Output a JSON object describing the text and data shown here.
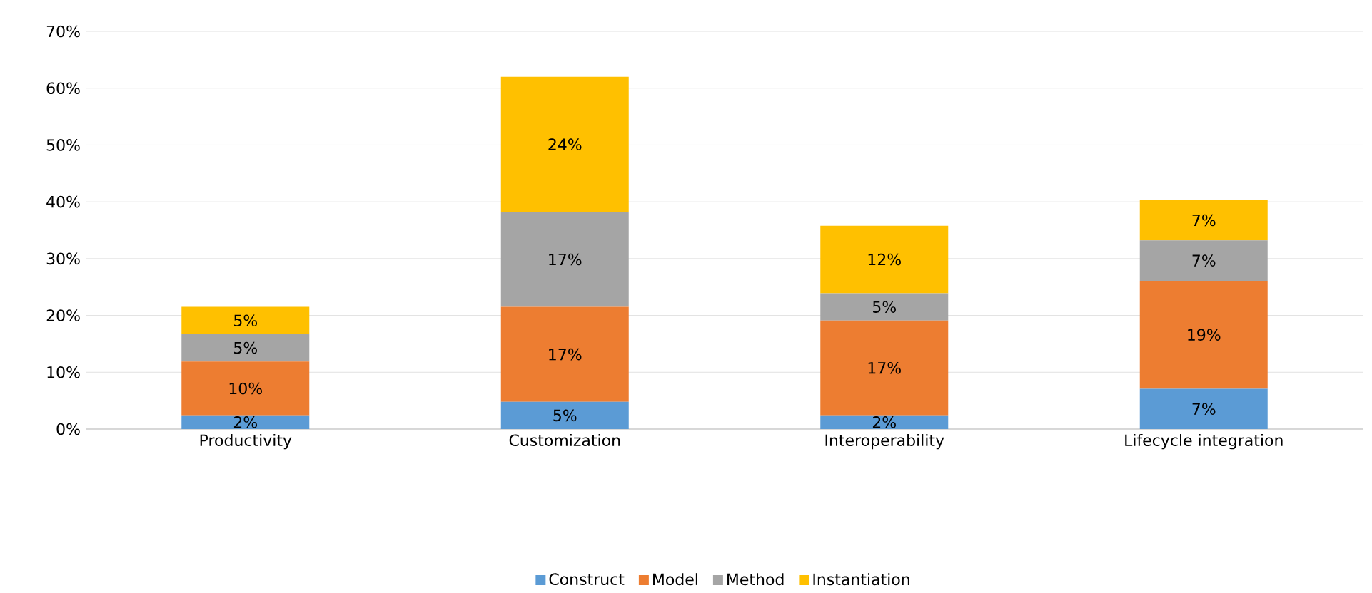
{
  "chart_data": {
    "type": "bar",
    "stacked": true,
    "categories": [
      "Productivity",
      "Customization",
      "Interoperability",
      "Lifecycle integration"
    ],
    "series": [
      {
        "name": "Construct",
        "color": "#5b9bd5",
        "values": [
          2.4,
          4.8,
          2.4,
          7.1
        ],
        "value_labels": [
          "2%",
          "5%",
          "2%",
          "7%"
        ]
      },
      {
        "name": "Model",
        "color": "#ed7d31",
        "values": [
          9.5,
          16.7,
          16.7,
          19.0
        ],
        "value_labels": [
          "10%",
          "17%",
          "17%",
          "19%"
        ]
      },
      {
        "name": "Method",
        "color": "#a5a5a5",
        "values": [
          4.8,
          16.7,
          4.8,
          7.1
        ],
        "value_labels": [
          "5%",
          "17%",
          "5%",
          "7%"
        ]
      },
      {
        "name": "Instantiation",
        "color": "#ffc000",
        "values": [
          4.8,
          23.8,
          11.9,
          7.1
        ],
        "value_labels": [
          "5%",
          "24%",
          "12%",
          "7%"
        ]
      }
    ],
    "ylim": [
      0,
      70
    ],
    "yticks": [
      {
        "value": 0,
        "label": "0%"
      },
      {
        "value": 10,
        "label": "10%"
      },
      {
        "value": 20,
        "label": "20%"
      },
      {
        "value": 30,
        "label": "30%"
      },
      {
        "value": 40,
        "label": "40%"
      },
      {
        "value": 50,
        "label": "50%"
      },
      {
        "value": 60,
        "label": "60%"
      },
      {
        "value": 70,
        "label": "70%"
      }
    ],
    "grid": "y",
    "legend": "bottom"
  }
}
